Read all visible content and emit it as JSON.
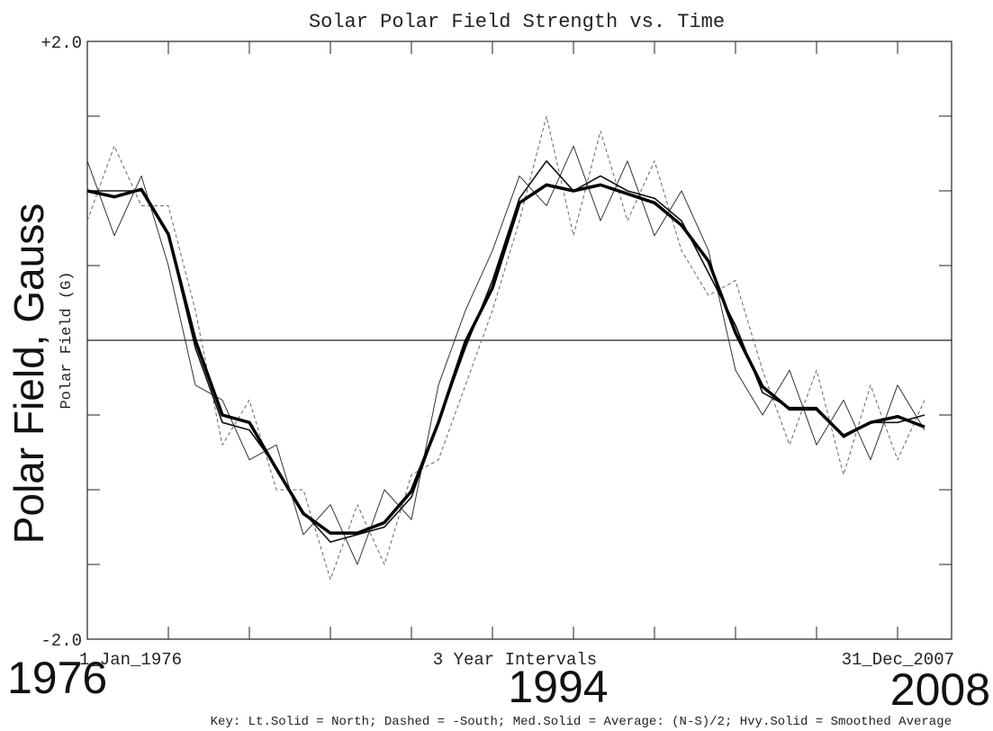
{
  "chart_data": {
    "type": "line",
    "title": "Solar Polar Field Strength vs. Time",
    "y_label": "Polar Field (G)",
    "y_label_overlay": "Polar Field, Gauss",
    "x_label": "3 Year Intervals",
    "x_start_label": "1_Jan_1976",
    "x_end_label": "31_Dec_2007",
    "year_overlays": [
      "1976",
      "1994",
      "2008"
    ],
    "key": "Key: Lt.Solid = North; Dashed = -South; Med.Solid = Average: (N-S)/2; Hvy.Solid = Smoothed Average",
    "x": [
      1976,
      1977,
      1978,
      1979,
      1980,
      1981,
      1982,
      1983,
      1984,
      1985,
      1986,
      1987,
      1988,
      1989,
      1990,
      1991,
      1992,
      1993,
      1994,
      1995,
      1996,
      1997,
      1998,
      1999,
      2000,
      2001,
      2002,
      2003,
      2004,
      2005,
      2006,
      2007
    ],
    "series": [
      {
        "name": "North",
        "color": "#333333",
        "values": [
          1.2,
          0.7,
          1.1,
          0.5,
          -0.3,
          -0.4,
          -0.8,
          -0.7,
          -1.3,
          -1.1,
          -1.5,
          -1.0,
          -1.2,
          -0.3,
          0.2,
          0.6,
          1.1,
          0.9,
          1.3,
          0.8,
          1.2,
          0.7,
          1.0,
          0.6,
          -0.2,
          -0.5,
          -0.2,
          -0.7,
          -0.4,
          -0.8,
          -0.3,
          -0.6
        ]
      },
      {
        "name": "-South",
        "color": "#666666",
        "dashed": true,
        "values": [
          0.8,
          1.3,
          0.9,
          0.9,
          0.2,
          -0.7,
          -0.4,
          -1.0,
          -1.0,
          -1.6,
          -1.1,
          -1.5,
          -0.9,
          -0.8,
          -0.3,
          0.2,
          0.8,
          1.5,
          0.7,
          1.4,
          0.8,
          1.2,
          0.6,
          0.3,
          0.4,
          -0.2,
          -0.7,
          -0.2,
          -0.9,
          -0.3,
          -0.8,
          -0.4
        ]
      },
      {
        "name": "Average: (N-S)/2",
        "color": "#111111",
        "values": [
          1.0,
          1.0,
          1.0,
          0.7,
          -0.05,
          -0.55,
          -0.6,
          -0.85,
          -1.15,
          -1.35,
          -1.3,
          -1.25,
          -1.05,
          -0.55,
          -0.05,
          0.4,
          0.95,
          1.2,
          1.0,
          1.1,
          1.0,
          0.95,
          0.8,
          0.45,
          0.1,
          -0.35,
          -0.45,
          -0.45,
          -0.65,
          -0.55,
          -0.55,
          -0.5
        ]
      },
      {
        "name": "Smoothed Average",
        "color": "#000000",
        "values": [
          1.0,
          0.96,
          1.01,
          0.71,
          0.0,
          -0.5,
          -0.55,
          -0.86,
          -1.16,
          -1.29,
          -1.29,
          -1.22,
          -1.01,
          -0.55,
          -0.01,
          0.35,
          0.92,
          1.04,
          1.0,
          1.04,
          0.98,
          0.92,
          0.77,
          0.53,
          0.05,
          -0.31,
          -0.46,
          -0.46,
          -0.64,
          -0.55,
          -0.51,
          -0.58
        ]
      }
    ],
    "xlim": [
      1976,
      2008
    ],
    "ylim": [
      -2,
      2
    ],
    "yticks": [
      {
        "value": -2,
        "label": "-2.0"
      },
      {
        "value": 2,
        "label": "+2.0"
      }
    ],
    "minor_yticks": [
      -1.5,
      -1,
      -0.5,
      0.5,
      1,
      1.5
    ],
    "minor_xticks": [
      1979,
      1982,
      1985,
      1988,
      1991,
      1994,
      1997,
      2000,
      2003,
      2006
    ],
    "zero_line": 0
  }
}
